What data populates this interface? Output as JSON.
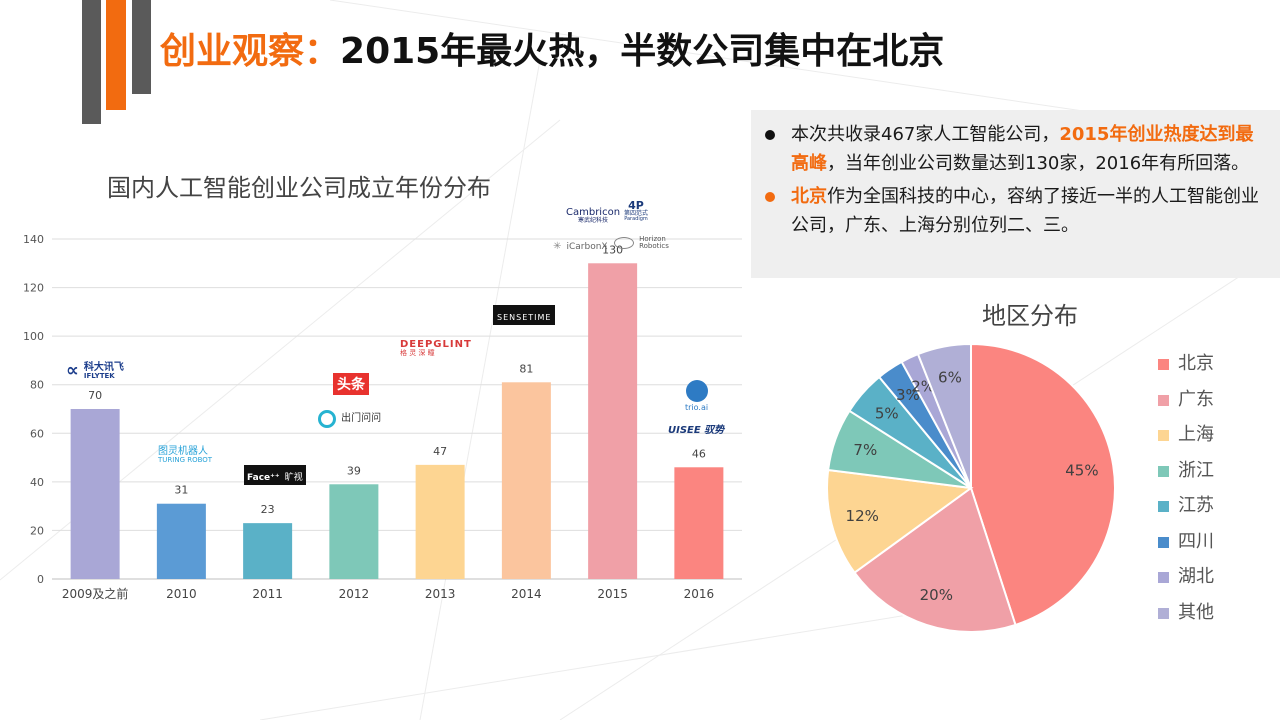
{
  "title": {
    "prefix": "创业观察：",
    "main": "2015年最火热，半数公司集中在北京"
  },
  "info": {
    "b1_a": "本次共收录467家人工智能公司，",
    "b1_hl": "2015年创业热度达到最高峰",
    "b1_b": "，当年创业公司数量达到130家，2016年有所回落。",
    "b2_hl": "北京",
    "b2_b": "作为全国科技的中心，容纳了接近一半的人工智能创业公司，广东、上海分别位列二、三。"
  },
  "logos": {
    "iflytek_cn": "科大讯飞",
    "iflytek_en": "IFLYTEK",
    "turing_cn": "图灵机器人",
    "turing_en": "TURING ROBOT",
    "face": "Face⁺⁺",
    "face_cn": "旷视",
    "toutiao": "头条",
    "chumen": "出门问问",
    "deepglint": "DEEPGLINT",
    "deepglint_cn": "格 灵 深 瞳",
    "sensetime": "SENSETIME",
    "cambricon": "Cambricon",
    "cambricon_cn": "寒武纪科技",
    "paradigm": "4P",
    "paradigm_cn": "第四范式",
    "paradigm_en": "Paradigm",
    "icarbonx": "iCarbonX",
    "horizon": "Horizon",
    "horizon2": "Robotics",
    "trio": "trio.ai",
    "uisee": "UISEE 驭势"
  },
  "chart_data": [
    {
      "type": "bar",
      "title": "国内人工智能创业公司成立年份分布",
      "categories": [
        "2009及之前",
        "2010",
        "2011",
        "2012",
        "2013",
        "2014",
        "2015",
        "2016"
      ],
      "values": [
        70,
        31,
        23,
        39,
        47,
        81,
        130,
        46
      ],
      "colors": [
        "#a9a7d6",
        "#5b9bd5",
        "#5ab1c7",
        "#7ec8b8",
        "#fdd592",
        "#fbc59e",
        "#f0a0a7",
        "#fb8580"
      ],
      "ylim": [
        0,
        140
      ],
      "yticks": [
        0,
        20,
        40,
        60,
        80,
        100,
        120,
        140
      ],
      "grid": true,
      "xlabel": "",
      "ylabel": ""
    },
    {
      "type": "pie",
      "title": "地区分布",
      "labels": [
        "北京",
        "广东",
        "上海",
        "浙江",
        "江苏",
        "四川",
        "湖北",
        "其他"
      ],
      "values": [
        45,
        20,
        12,
        7,
        5,
        3,
        2,
        6
      ],
      "value_labels": [
        "45%",
        "20%",
        "12%",
        "7%",
        "5%",
        "3%",
        "2%",
        "6%"
      ],
      "colors": [
        "#fb8580",
        "#f0a0a7",
        "#fdd592",
        "#7ec8b8",
        "#5ab1c7",
        "#4a8ccb",
        "#a9a7d6",
        "#b0afd6"
      ],
      "legend": "right"
    }
  ]
}
